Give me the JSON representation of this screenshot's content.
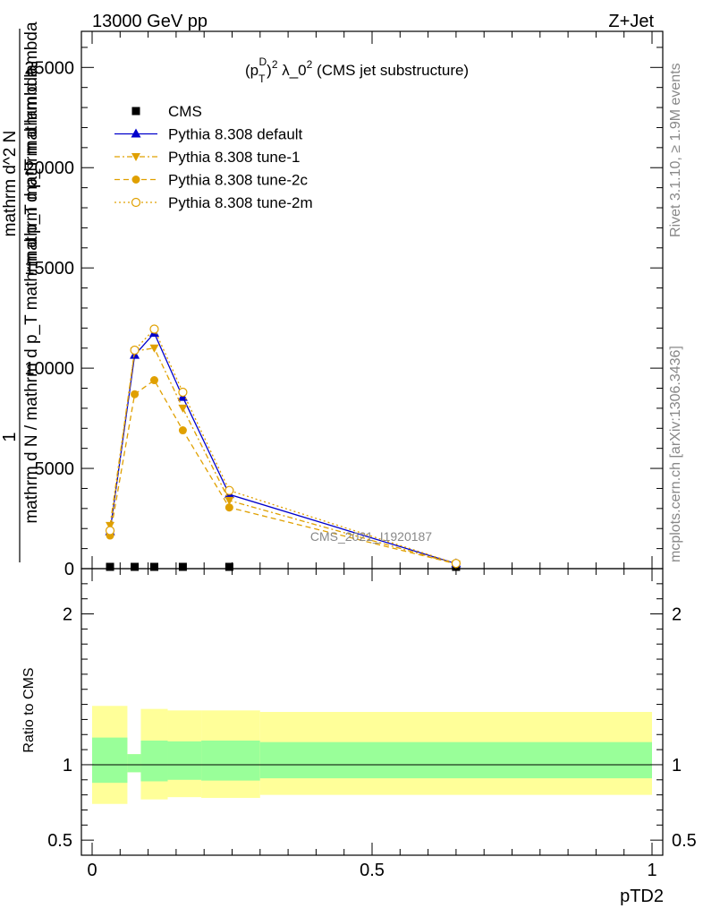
{
  "header": {
    "left": "13000 GeV pp",
    "right": "Z+Jet"
  },
  "plot_title": "(p_T^D)^2 λ_0^2 (CMS jet substructure)",
  "plot_title_parts": {
    "a": "(p",
    "sup": "D",
    "sub": "T",
    "b": ")",
    "two": "2",
    "c": " λ_0",
    "d": " (CMS jet substructure)"
  },
  "watermark": "CMS_2021_I1920187",
  "side_texts": {
    "rivet": "Rivet 3.1.10, ≥ 1.9M events",
    "mcplots": "mcplots.cern.ch [arXiv:1306.3436]"
  },
  "y_label_upper": {
    "num_one": "1",
    "den_one": "mathrm d N / mathrm d p_T mathrm d p_T mathrm d lambda",
    "num": "mathrm d^2 N",
    "den": "mathrm d p_T mathrm d lambda"
  },
  "y_label_lower": "Ratio to CMS",
  "x_label": "pTD2",
  "legend": [
    {
      "name": "CMS",
      "style": "data"
    },
    {
      "name": "Pythia 8.308 default",
      "style": "default"
    },
    {
      "name": "Pythia 8.308 tune-1",
      "style": "tune1"
    },
    {
      "name": "Pythia 8.308 tune-2c",
      "style": "tune2c"
    },
    {
      "name": "Pythia 8.308 tune-2m",
      "style": "tune2m"
    }
  ],
  "colors": {
    "data": "#000000",
    "default": "#0000cc",
    "tune": "#e0a000",
    "band_inner": "#99ff99",
    "band_outer": "#ffff99"
  },
  "chart_data": [
    {
      "type": "line",
      "panel": "main",
      "xlim": [
        0,
        1
      ],
      "ylim": [
        0,
        26800
      ],
      "y_ticks": [
        "0",
        "5000",
        "10000",
        "15000",
        "20000",
        "25000"
      ],
      "y_tick_values": [
        0,
        5000,
        10000,
        15000,
        20000,
        25000
      ],
      "x_bin_edges": [
        0,
        0.063,
        0.087,
        0.135,
        0.195,
        0.3,
        1.0
      ],
      "series": [
        {
          "name": "CMS",
          "x": [
            0.032,
            0.076,
            0.111,
            0.162,
            0.245,
            0.65
          ],
          "y": [
            0,
            0,
            0,
            0,
            0,
            0
          ]
        },
        {
          "name": "Pythia 8.308 default",
          "x": [
            0.032,
            0.076,
            0.111,
            0.162,
            0.245,
            0.65
          ],
          "y": [
            1850,
            10650,
            11750,
            8550,
            3700,
            250
          ]
        },
        {
          "name": "Pythia 8.308 tune-1",
          "x": [
            0.032,
            0.076,
            0.111,
            0.162,
            0.245,
            0.65
          ],
          "y": [
            2150,
            10850,
            11000,
            8000,
            3400,
            230
          ]
        },
        {
          "name": "Pythia 8.308 tune-2c",
          "x": [
            0.032,
            0.076,
            0.111,
            0.162,
            0.245,
            0.65
          ],
          "y": [
            1650,
            8700,
            9400,
            6900,
            3050,
            240
          ]
        },
        {
          "name": "Pythia 8.308 tune-2m",
          "x": [
            0.032,
            0.076,
            0.111,
            0.162,
            0.245,
            0.65
          ],
          "y": [
            1900,
            10900,
            11950,
            8800,
            3900,
            260
          ]
        }
      ]
    },
    {
      "type": "area",
      "panel": "ratio",
      "xlim": [
        0,
        1
      ],
      "ylim": [
        0.4,
        2.3
      ],
      "y_ticks": [
        "0.5",
        "1",
        "2"
      ],
      "y_tick_values": [
        0.5,
        1,
        2
      ],
      "x_ticks": [
        "0",
        "0.5",
        "1"
      ],
      "x_tick_values": [
        0,
        0.5,
        1
      ],
      "bin_edges": [
        0,
        0.063,
        0.087,
        0.135,
        0.195,
        0.3,
        1.0
      ],
      "band_inner_low": [
        0.88,
        0.95,
        0.89,
        0.9,
        0.895,
        0.91
      ],
      "band_inner_high": [
        1.18,
        1.07,
        1.16,
        1.155,
        1.16,
        1.15
      ],
      "band_outer_low": [
        0.74,
        0.95,
        0.77,
        0.785,
        0.78,
        0.8
      ],
      "band_outer_high": [
        1.39,
        1.07,
        1.37,
        1.36,
        1.36,
        1.35
      ],
      "reference": 1
    }
  ]
}
